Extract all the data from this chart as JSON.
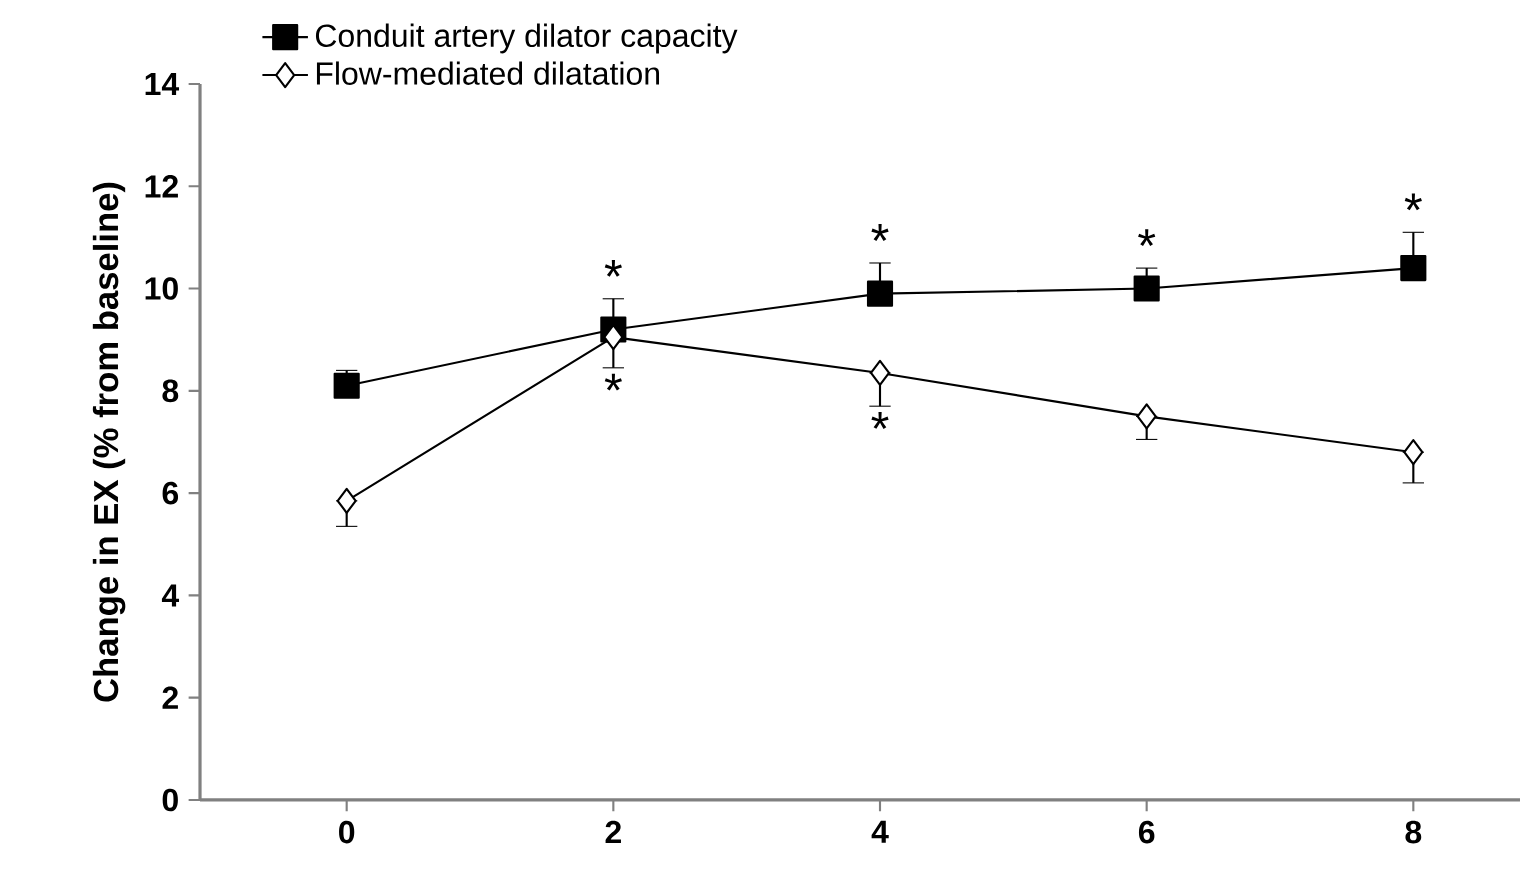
{
  "chart_data": {
    "type": "line",
    "ylabel": "Change in EX (% from baseline)",
    "x": [
      0,
      2,
      4,
      6,
      8
    ],
    "series": [
      {
        "name": "Conduit artery dilator capacity",
        "color": "#000000",
        "marker": "square",
        "values": [
          8.1,
          9.2,
          9.9,
          10.0,
          10.4
        ],
        "errors": [
          [
            8.1,
            8.4
          ],
          [
            9.2,
            9.8
          ],
          [
            9.9,
            10.5
          ],
          [
            10.0,
            10.4
          ],
          [
            10.4,
            11.1
          ]
        ]
      },
      {
        "name": "Flow-mediated dilatation",
        "color": "#000000",
        "marker": "diamond",
        "values": [
          5.85,
          9.05,
          8.35,
          7.5,
          6.8
        ],
        "errors": [
          [
            5.35,
            5.85
          ],
          [
            8.45,
            9.05
          ],
          [
            7.7,
            8.35
          ],
          [
            7.05,
            7.5
          ],
          [
            6.2,
            6.8
          ]
        ]
      }
    ],
    "annotations": [
      "*",
      "*",
      "*",
      "*",
      "*",
      "*"
    ],
    "xlim": [
      -1.1,
      8.8
    ],
    "ylim": [
      0,
      14
    ],
    "xticks": [
      0,
      2,
      4,
      6,
      8
    ],
    "yticks": [
      0,
      2,
      4,
      6,
      8,
      10,
      12,
      14
    ],
    "legend": "top left",
    "line_style": "solid",
    "grid": false
  }
}
